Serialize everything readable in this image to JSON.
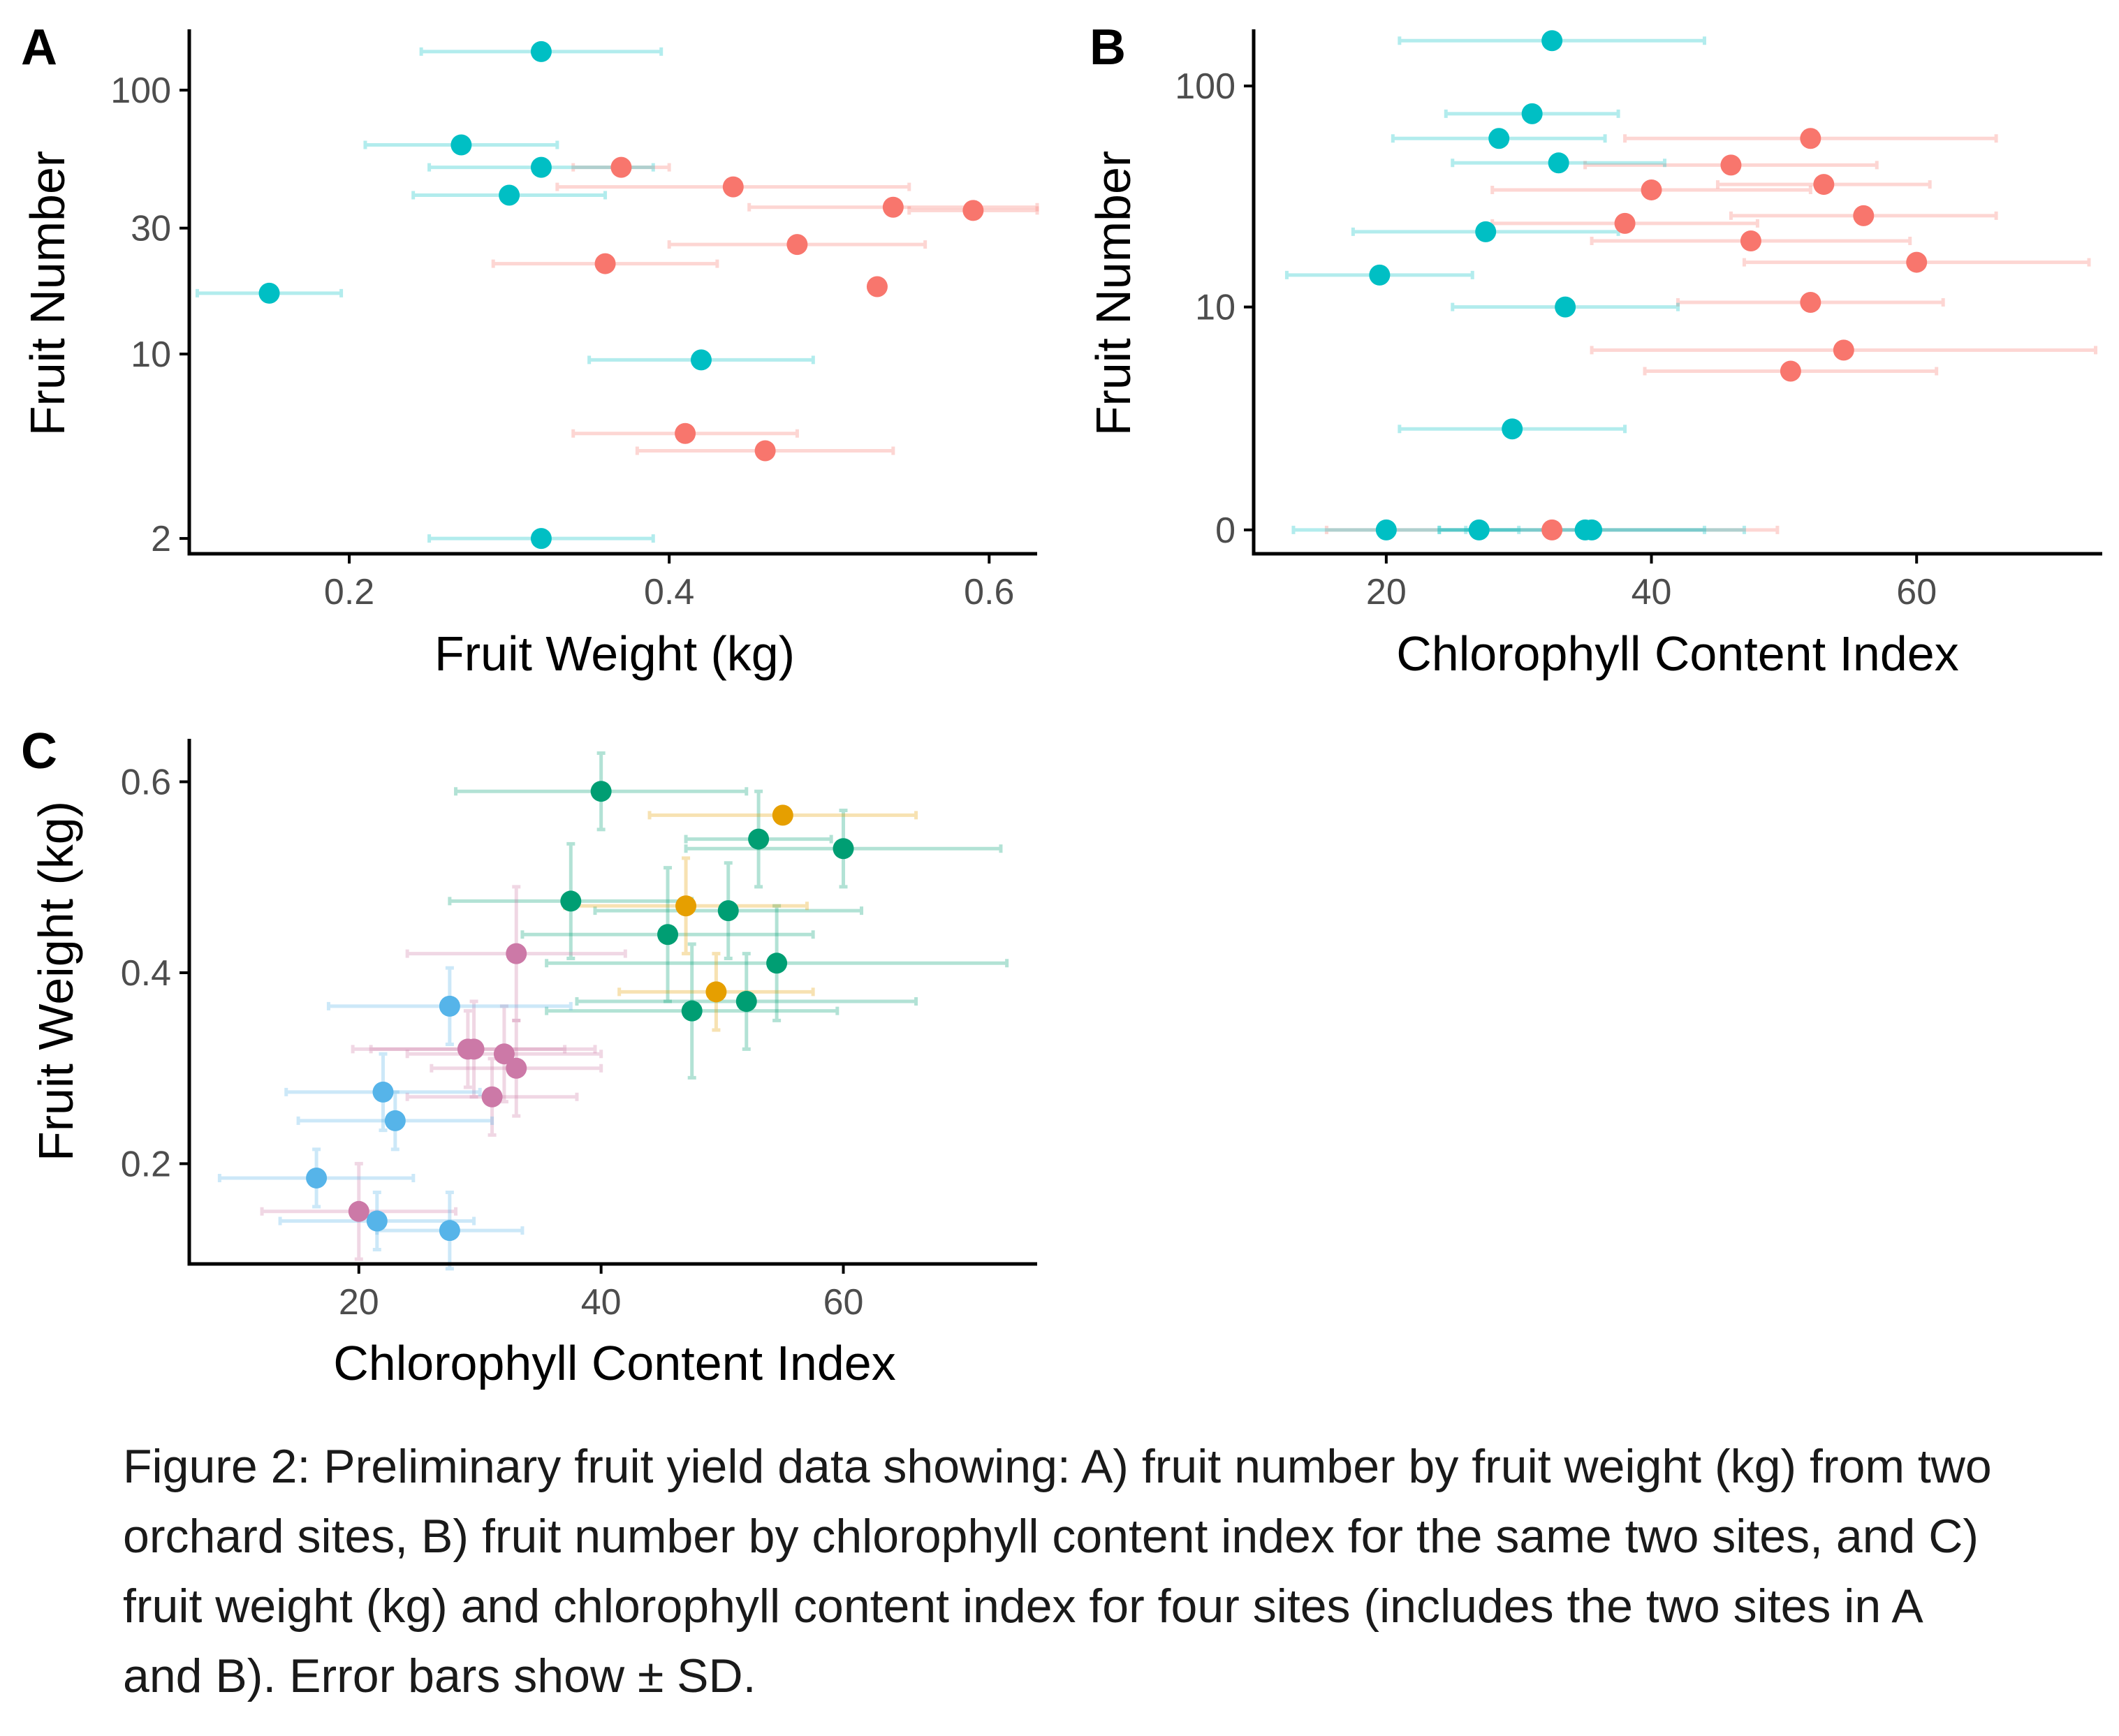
{
  "colors": {
    "site_red": "#F8766D",
    "site_teal": "#00BFC4",
    "site_green": "#009E73",
    "site_orange": "#E69F00",
    "site_purple": "#CC79A7",
    "site_blue": "#56B4E9"
  },
  "caption": "Figure 2: Preliminary fruit yield data showing: A) fruit number by fruit weight (kg) from two orchard sites, B) fruit number by chlorophyll content index for the same two sites, and C) fruit weight (kg) and chlorophyll content index for four sites (includes the two sites in A and B). Error bars show ± SD.",
  "chart_data": [
    {
      "panel_label": "A",
      "type": "scatter",
      "xlabel": "Fruit Weight (kg)",
      "ylabel": "Fruit Number",
      "x_scale": "linear",
      "y_scale": "log",
      "xlim": [
        0.1,
        0.63
      ],
      "ylim": [
        1.75,
        170
      ],
      "x_ticks": [
        0.2,
        0.4,
        0.6
      ],
      "x_tick_labels": [
        "0.2",
        "0.4",
        "0.6"
      ],
      "y_ticks": [
        2,
        10,
        30,
        100
      ],
      "y_tick_labels": [
        "2",
        "10",
        "30",
        "100"
      ],
      "grid": false,
      "legend": "none",
      "error_bars": "x (± SD)",
      "series": [
        {
          "color_key": "site_red",
          "points": [
            {
              "x": 0.37,
              "y": 51,
              "xerr": 0.03
            },
            {
              "x": 0.44,
              "y": 43,
              "xerr": 0.11
            },
            {
              "x": 0.54,
              "y": 36,
              "xerr": 0.09
            },
            {
              "x": 0.59,
              "y": 35,
              "xerr": 0.04
            },
            {
              "x": 0.48,
              "y": 26,
              "xerr": 0.08
            },
            {
              "x": 0.36,
              "y": 22,
              "xerr": 0.07
            },
            {
              "x": 0.53,
              "y": 18,
              "xerr": 0.0
            },
            {
              "x": 0.41,
              "y": 5,
              "xerr": 0.07
            },
            {
              "x": 0.46,
              "y": 4.3,
              "xerr": 0.08
            }
          ]
        },
        {
          "color_key": "site_teal",
          "points": [
            {
              "x": 0.32,
              "y": 140,
              "xerr": 0.075
            },
            {
              "x": 0.27,
              "y": 62,
              "xerr": 0.06
            },
            {
              "x": 0.32,
              "y": 51,
              "xerr": 0.07
            },
            {
              "x": 0.3,
              "y": 40,
              "xerr": 0.06
            },
            {
              "x": 0.15,
              "y": 17,
              "xerr": 0.045
            },
            {
              "x": 0.42,
              "y": 9.5,
              "xerr": 0.07
            },
            {
              "x": 0.32,
              "y": 2,
              "xerr": 0.07
            }
          ]
        }
      ]
    },
    {
      "panel_label": "B",
      "type": "scatter",
      "xlabel": "Chlorophyll Content Index",
      "ylabel": "Fruit Number",
      "x_scale": "linear",
      "y_scale": "pseudo-log",
      "xlim": [
        10,
        74
      ],
      "ylim": [
        -0.5,
        180
      ],
      "x_ticks": [
        20,
        40,
        60
      ],
      "x_tick_labels": [
        "20",
        "40",
        "60"
      ],
      "y_ticks": [
        0,
        10,
        100
      ],
      "y_tick_labels": [
        "0",
        "10",
        "100"
      ],
      "grid": false,
      "legend": "none",
      "error_bars": "x (± SD)",
      "series": [
        {
          "color_key": "site_red",
          "points": [
            {
              "x": 52,
              "y": 58,
              "xerr": 14
            },
            {
              "x": 46,
              "y": 44,
              "xerr": 11
            },
            {
              "x": 53,
              "y": 36,
              "xerr": 8
            },
            {
              "x": 40,
              "y": 34,
              "xerr": 12
            },
            {
              "x": 56,
              "y": 26,
              "xerr": 10
            },
            {
              "x": 38,
              "y": 24,
              "xerr": 10
            },
            {
              "x": 47.5,
              "y": 20,
              "xerr": 12
            },
            {
              "x": 60,
              "y": 16,
              "xerr": 13
            },
            {
              "x": 52,
              "y": 10.5,
              "xerr": 10
            },
            {
              "x": 54.5,
              "y": 6.3,
              "xerr": 19
            },
            {
              "x": 50.5,
              "y": 5,
              "xerr": 11
            },
            {
              "x": 32.5,
              "y": 0,
              "xerr": 17
            }
          ]
        },
        {
          "color_key": "site_teal",
          "points": [
            {
              "x": 32.5,
              "y": 160,
              "xerr": 11.5
            },
            {
              "x": 31,
              "y": 75,
              "xerr": 6.5
            },
            {
              "x": 28.5,
              "y": 58,
              "xerr": 8
            },
            {
              "x": 33,
              "y": 45,
              "xerr": 8
            },
            {
              "x": 27.5,
              "y": 22,
              "xerr": 10
            },
            {
              "x": 19.5,
              "y": 14,
              "xerr": 7
            },
            {
              "x": 33.5,
              "y": 10,
              "xerr": 8.5
            },
            {
              "x": 29.5,
              "y": 2.5,
              "xerr": 8.5
            },
            {
              "x": 20,
              "y": 0,
              "xerr": 7
            },
            {
              "x": 27,
              "y": 0,
              "xerr": 3
            },
            {
              "x": 35,
              "y": 0,
              "xerr": 9
            },
            {
              "x": 35.5,
              "y": 0,
              "xerr": 11.5
            }
          ]
        }
      ]
    },
    {
      "panel_label": "C",
      "type": "scatter",
      "xlabel": "Chlorophyll Content Index",
      "ylabel": "Fruit Weight (kg)",
      "x_scale": "linear",
      "y_scale": "linear",
      "xlim": [
        6,
        76
      ],
      "ylim": [
        0.095,
        0.645
      ],
      "x_ticks": [
        20,
        40,
        60
      ],
      "x_tick_labels": [
        "20",
        "40",
        "60"
      ],
      "y_ticks": [
        0.2,
        0.4,
        0.6
      ],
      "y_tick_labels": [
        "0.2",
        "0.4",
        "0.6"
      ],
      "grid": false,
      "legend": "none",
      "error_bars": "x and y (± SD)",
      "series": [
        {
          "color_key": "site_green",
          "points": [
            {
              "x": 40,
              "y": 0.59,
              "xerr": 12,
              "yerr": 0.04
            },
            {
              "x": 53,
              "y": 0.54,
              "xerr": 6,
              "yerr": 0.05
            },
            {
              "x": 60,
              "y": 0.53,
              "xerr": 13,
              "yerr": 0.04
            },
            {
              "x": 37.5,
              "y": 0.475,
              "xerr": 10,
              "yerr": 0.06
            },
            {
              "x": 50.5,
              "y": 0.465,
              "xerr": 11,
              "yerr": 0.05
            },
            {
              "x": 45.5,
              "y": 0.44,
              "xerr": 12,
              "yerr": 0.07
            },
            {
              "x": 54.5,
              "y": 0.41,
              "xerr": 19,
              "yerr": 0.06
            },
            {
              "x": 52,
              "y": 0.37,
              "xerr": 14,
              "yerr": 0.05
            },
            {
              "x": 47.5,
              "y": 0.36,
              "xerr": 12,
              "yerr": 0.07
            }
          ]
        },
        {
          "color_key": "site_orange",
          "points": [
            {
              "x": 55,
              "y": 0.565,
              "xerr": 11,
              "yerr": 0.0
            },
            {
              "x": 47,
              "y": 0.47,
              "xerr": 10,
              "yerr": 0.05
            },
            {
              "x": 49.5,
              "y": 0.38,
              "xerr": 8,
              "yerr": 0.04
            }
          ]
        },
        {
          "color_key": "site_purple",
          "points": [
            {
              "x": 33,
              "y": 0.42,
              "xerr": 9,
              "yerr": 0.07
            },
            {
              "x": 29,
              "y": 0.32,
              "xerr": 8,
              "yerr": 0.04
            },
            {
              "x": 29.5,
              "y": 0.32,
              "xerr": 10,
              "yerr": 0.05
            },
            {
              "x": 32,
              "y": 0.315,
              "xerr": 8,
              "yerr": 0.05
            },
            {
              "x": 33,
              "y": 0.3,
              "xerr": 7,
              "yerr": 0.05
            },
            {
              "x": 31,
              "y": 0.27,
              "xerr": 7,
              "yerr": 0.04
            },
            {
              "x": 20,
              "y": 0.15,
              "xerr": 8,
              "yerr": 0.05
            }
          ]
        },
        {
          "color_key": "site_blue",
          "points": [
            {
              "x": 27.5,
              "y": 0.365,
              "xerr": 10,
              "yerr": 0.04
            },
            {
              "x": 22,
              "y": 0.275,
              "xerr": 8,
              "yerr": 0.04
            },
            {
              "x": 23,
              "y": 0.245,
              "xerr": 8,
              "yerr": 0.03
            },
            {
              "x": 16.5,
              "y": 0.185,
              "xerr": 8,
              "yerr": 0.03
            },
            {
              "x": 21.5,
              "y": 0.14,
              "xerr": 8,
              "yerr": 0.03
            },
            {
              "x": 27.5,
              "y": 0.13,
              "xerr": 6,
              "yerr": 0.04
            }
          ]
        }
      ]
    }
  ]
}
